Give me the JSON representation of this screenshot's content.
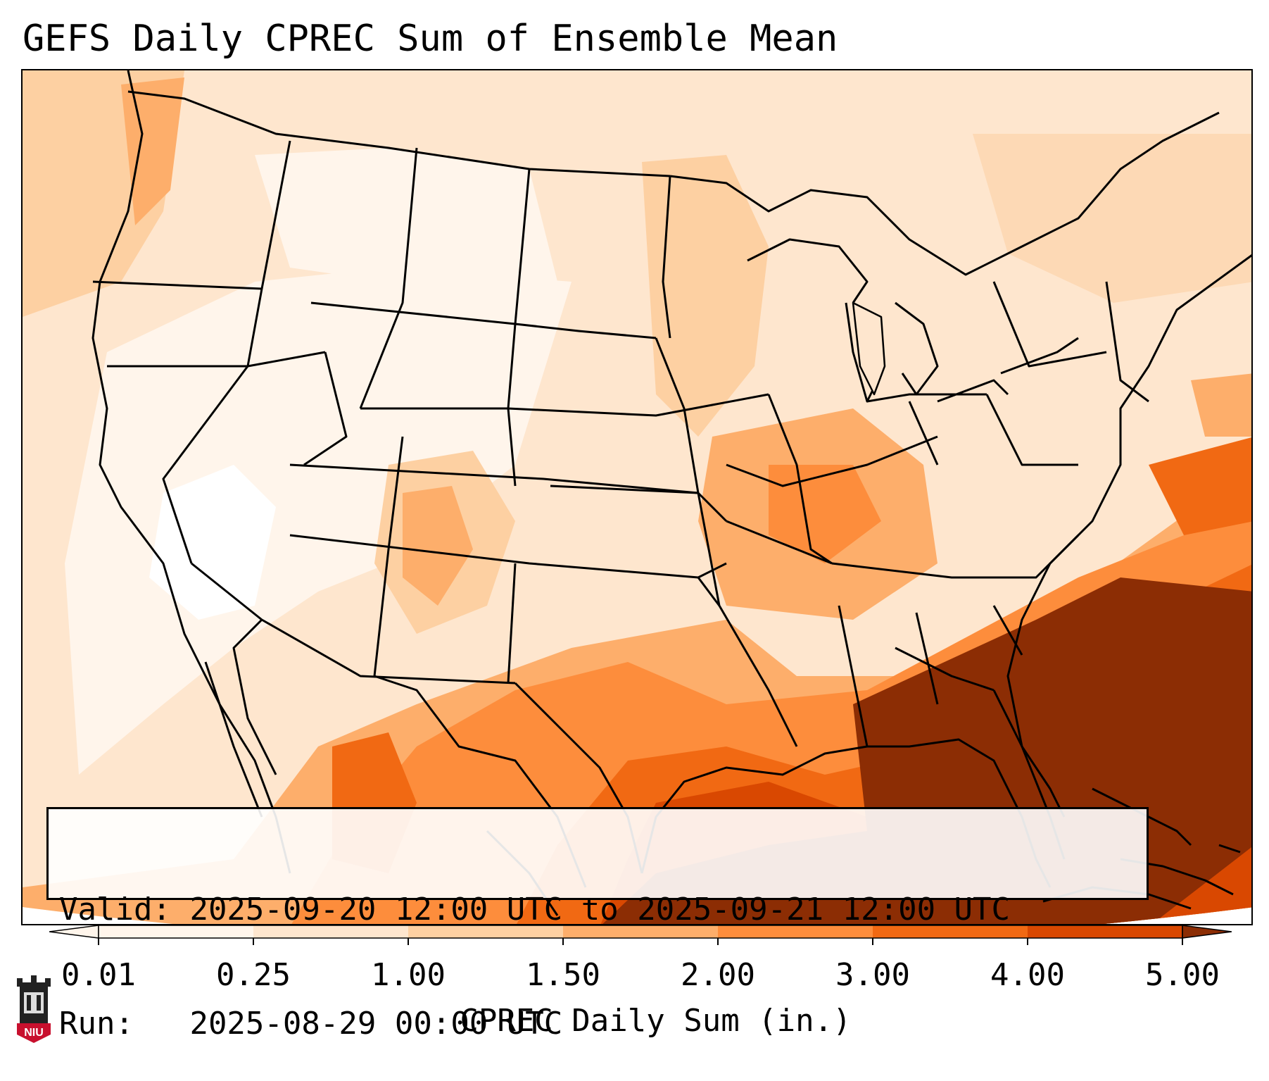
{
  "title": "GEFS Daily CPREC Sum of Ensemble Mean",
  "info": {
    "valid_label": "Valid:",
    "valid_value": "2025-09-20 12:00 UTC to 2025-09-21 12:00 UTC",
    "run_label": "Run:",
    "run_value": "2025-08-29 00:00 UTC"
  },
  "colorbar": {
    "label": "CPREC Daily Sum (in.)",
    "ticks": [
      "0.01",
      "0.25",
      "1.00",
      "1.50",
      "2.00",
      "3.00",
      "4.00",
      "5.00"
    ],
    "colors": [
      "#fff5eb",
      "#fee6ce",
      "#fdd0a2",
      "#fdae6b",
      "#fd8d3c",
      "#f16913",
      "#d94801",
      "#8c2d04"
    ],
    "extend": "both"
  },
  "logo": {
    "text": "NIU",
    "color": "#c8102e"
  }
}
